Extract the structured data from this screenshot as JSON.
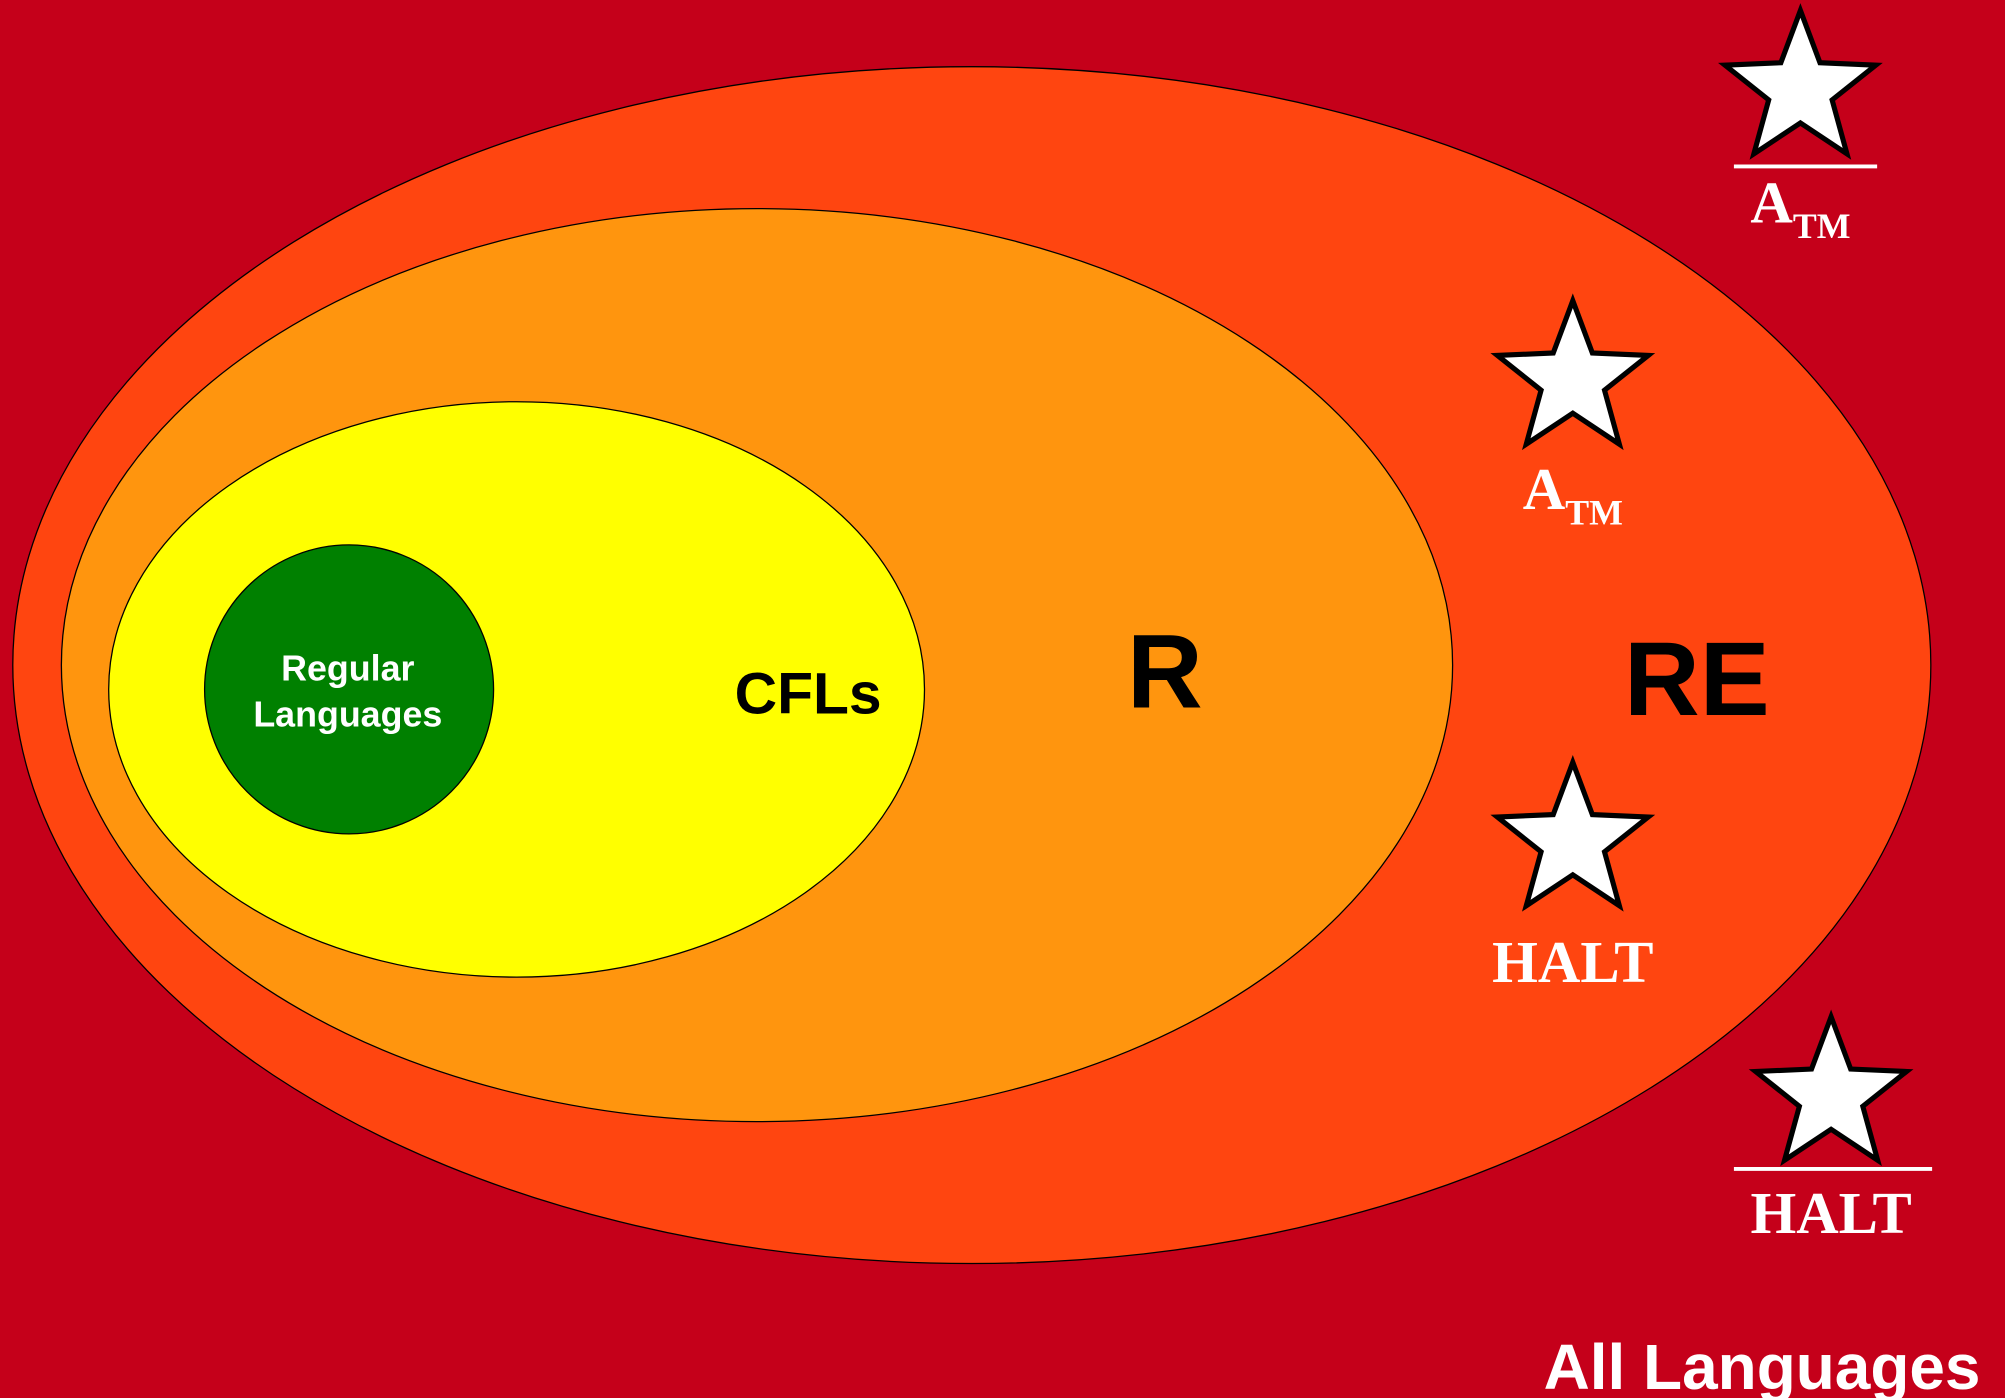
{
  "regions": [
    {
      "label": "All Languages"
    },
    {
      "label": "RE"
    },
    {
      "label": "R"
    },
    {
      "label": "CFLs"
    },
    {
      "label_lines": [
        "Regular",
        "Languages"
      ]
    }
  ],
  "languages": [
    {
      "name": "A",
      "subscript": "TM",
      "complement": true
    },
    {
      "name": "A",
      "subscript": "TM",
      "complement": false
    },
    {
      "name": "HALT",
      "complement": false
    },
    {
      "name": "HALT",
      "complement": true
    }
  ]
}
